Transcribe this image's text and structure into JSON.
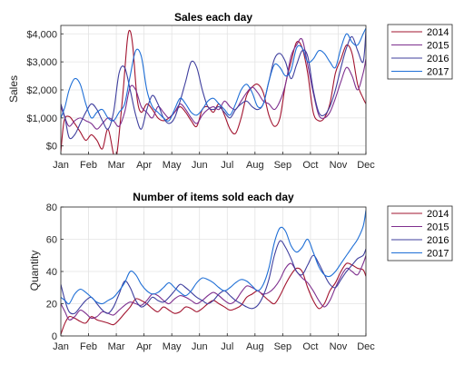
{
  "chart_data": [
    {
      "type": "line",
      "title": "Sales each day",
      "xlabel": "",
      "ylabel": "Sales",
      "x_ticks": [
        "Jan",
        "Feb",
        "Mar",
        "Apr",
        "May",
        "Jun",
        "Jul",
        "Aug",
        "Sep",
        "Oct",
        "Nov",
        "Dec"
      ],
      "y_ticks": [
        0,
        1000,
        2000,
        3000,
        4000
      ],
      "y_tick_labels": [
        "$0",
        "$1,000",
        "$2,000",
        "$3,000",
        "$4,000"
      ],
      "ylim": [
        -300,
        4300
      ],
      "xlim": [
        1,
        12
      ],
      "grid": true,
      "legend_position": "outside-top-right",
      "series": [
        {
          "name": "2014",
          "color": "#a2142f",
          "x": [
            1,
            1.12,
            1.3,
            1.5,
            1.7,
            1.9,
            2.1,
            2.3,
            2.5,
            2.7,
            2.9,
            3.0,
            3.1,
            3.25,
            3.4,
            3.5,
            3.6,
            3.75,
            3.9,
            4.1,
            4.3,
            4.5,
            4.7,
            4.9,
            5.1,
            5.3,
            5.5,
            5.7,
            5.9,
            6.1,
            6.3,
            6.5,
            6.7,
            6.9,
            7.1,
            7.3,
            7.5,
            7.7,
            7.9,
            8.1,
            8.3,
            8.5,
            8.7,
            8.9,
            9.1,
            9.3,
            9.5,
            9.7,
            9.9,
            10.1,
            10.3,
            10.5,
            10.7,
            10.9,
            11.1,
            11.3,
            11.5,
            11.7,
            11.9,
            12.0
          ],
          "y": [
            -200,
            900,
            1050,
            800,
            500,
            200,
            400,
            200,
            -100,
            600,
            -300,
            -400,
            400,
            2000,
            3800,
            4100,
            3500,
            1700,
            1200,
            1500,
            1300,
            1000,
            900,
            1000,
            1200,
            1400,
            1200,
            900,
            700,
            1300,
            1400,
            1200,
            1500,
            1100,
            600,
            450,
            1000,
            1800,
            2100,
            2200,
            1900,
            1100,
            700,
            1000,
            2200,
            3000,
            3700,
            3500,
            2600,
            1200,
            900,
            1000,
            1500,
            2600,
            3100,
            3600,
            3300,
            2200,
            1700,
            1500
          ]
        },
        {
          "name": "2015",
          "color": "#7e2f8e",
          "x": [
            1,
            1.15,
            1.3,
            1.5,
            1.7,
            1.9,
            2.1,
            2.3,
            2.5,
            2.7,
            2.9,
            3.1,
            3.3,
            3.5,
            3.7,
            3.9,
            4.1,
            4.3,
            4.5,
            4.7,
            4.9,
            5.1,
            5.3,
            5.5,
            5.7,
            5.9,
            6.1,
            6.3,
            6.5,
            6.7,
            6.9,
            7.1,
            7.3,
            7.5,
            7.7,
            7.9,
            8.1,
            8.3,
            8.5,
            8.7,
            8.9,
            9.1,
            9.3,
            9.5,
            9.7,
            9.9,
            10.1,
            10.3,
            10.5,
            10.7,
            10.9,
            11.1,
            11.3,
            11.5,
            11.7,
            11.9,
            12.0
          ],
          "y": [
            1400,
            1000,
            700,
            900,
            1000,
            900,
            800,
            600,
            800,
            1000,
            900,
            700,
            1200,
            2100,
            2000,
            1400,
            1200,
            1000,
            1400,
            1200,
            1000,
            1200,
            1500,
            1300,
            1000,
            800,
            1100,
            1300,
            1400,
            1300,
            1600,
            1400,
            1300,
            1600,
            1900,
            2100,
            1900,
            1600,
            1500,
            1300,
            1600,
            2200,
            3200,
            3600,
            3800,
            2900,
            1900,
            1100,
            1000,
            1200,
            1700,
            2300,
            2800,
            2500,
            2000,
            2600,
            3100
          ]
        },
        {
          "name": "2016",
          "color": "#3f3f9e",
          "x": [
            1,
            1.15,
            1.3,
            1.5,
            1.7,
            1.9,
            2.1,
            2.3,
            2.5,
            2.7,
            2.9,
            3.1,
            3.3,
            3.5,
            3.7,
            3.9,
            4.1,
            4.3,
            4.5,
            4.7,
            4.9,
            5.1,
            5.3,
            5.5,
            5.7,
            5.9,
            6.1,
            6.3,
            6.5,
            6.7,
            6.9,
            7.1,
            7.3,
            7.5,
            7.7,
            7.9,
            8.1,
            8.3,
            8.5,
            8.7,
            8.9,
            9.1,
            9.3,
            9.5,
            9.7,
            9.9,
            10.1,
            10.3,
            10.5,
            10.7,
            10.9,
            11.1,
            11.3,
            11.5,
            11.7,
            11.9,
            12.0
          ],
          "y": [
            1500,
            1000,
            300,
            400,
            800,
            1200,
            1500,
            1300,
            900,
            600,
            1200,
            2600,
            2800,
            2000,
            1100,
            600,
            1300,
            1800,
            1500,
            1000,
            800,
            1000,
            1600,
            2300,
            3000,
            2800,
            2000,
            1400,
            1300,
            1400,
            1200,
            1000,
            1300,
            1500,
            1600,
            1400,
            1300,
            1500,
            2300,
            3100,
            3300,
            3000,
            2400,
            2900,
            3400,
            3200,
            2000,
            1200,
            1100,
            1400,
            2000,
            2800,
            3500,
            3900,
            3400,
            3000,
            4100
          ]
        },
        {
          "name": "2017",
          "color": "#1f6fd6",
          "x": [
            1,
            1.15,
            1.3,
            1.5,
            1.7,
            1.9,
            2.1,
            2.3,
            2.5,
            2.7,
            2.9,
            3.1,
            3.3,
            3.5,
            3.7,
            3.9,
            4.1,
            4.3,
            4.5,
            4.7,
            4.9,
            5.1,
            5.3,
            5.5,
            5.7,
            5.9,
            6.1,
            6.3,
            6.5,
            6.7,
            6.9,
            7.1,
            7.3,
            7.5,
            7.7,
            7.9,
            8.1,
            8.3,
            8.5,
            8.7,
            8.9,
            9.1,
            9.3,
            9.5,
            9.7,
            9.9,
            10.1,
            10.3,
            10.5,
            10.7,
            10.9,
            11.1,
            11.3,
            11.5,
            11.7,
            11.9,
            12.0
          ],
          "y": [
            1000,
            1400,
            2000,
            2400,
            2200,
            1500,
            1000,
            1200,
            1300,
            1000,
            900,
            1200,
            1500,
            2500,
            3400,
            3200,
            2000,
            1400,
            1200,
            1000,
            900,
            1300,
            1700,
            1500,
            1200,
            1100,
            1300,
            1600,
            1700,
            1500,
            1300,
            1100,
            1500,
            2000,
            2200,
            1900,
            1400,
            1500,
            2300,
            2900,
            2800,
            2500,
            2700,
            3500,
            3500,
            3000,
            3100,
            3400,
            3300,
            3000,
            2800,
            3500,
            4000,
            3700,
            3600,
            4000,
            4200
          ]
        }
      ]
    },
    {
      "type": "line",
      "title": "Number of items sold each day",
      "xlabel": "",
      "ylabel": "Quantity",
      "x_ticks": [
        "Jan",
        "Feb",
        "Mar",
        "Apr",
        "May",
        "Jun",
        "Jul",
        "Aug",
        "Sep",
        "Oct",
        "Nov",
        "Dec"
      ],
      "y_ticks": [
        0,
        20,
        40,
        60,
        80
      ],
      "y_tick_labels": [
        "0",
        "20",
        "40",
        "60",
        "80"
      ],
      "ylim": [
        0,
        80
      ],
      "xlim": [
        1,
        12
      ],
      "grid": true,
      "legend_position": "outside-top-right",
      "series": [
        {
          "name": "2014",
          "color": "#a2142f",
          "x": [
            1,
            1.15,
            1.3,
            1.5,
            1.7,
            1.9,
            2.1,
            2.3,
            2.5,
            2.7,
            2.9,
            3.1,
            3.3,
            3.5,
            3.7,
            3.9,
            4.1,
            4.3,
            4.5,
            4.7,
            4.9,
            5.1,
            5.3,
            5.5,
            5.7,
            5.9,
            6.1,
            6.3,
            6.5,
            6.7,
            6.9,
            7.1,
            7.3,
            7.5,
            7.7,
            7.9,
            8.1,
            8.3,
            8.5,
            8.7,
            8.9,
            9.1,
            9.3,
            9.5,
            9.7,
            9.9,
            10.1,
            10.3,
            10.5,
            10.7,
            10.9,
            11.1,
            11.3,
            11.5,
            11.7,
            11.9,
            12.0
          ],
          "y": [
            1,
            8,
            12,
            11,
            9,
            8,
            12,
            10,
            9,
            8,
            7,
            10,
            14,
            18,
            23,
            22,
            20,
            17,
            15,
            18,
            16,
            14,
            15,
            18,
            17,
            15,
            17,
            20,
            22,
            20,
            18,
            16,
            17,
            19,
            24,
            26,
            28,
            25,
            22,
            20,
            25,
            32,
            38,
            42,
            40,
            30,
            22,
            17,
            20,
            28,
            33,
            40,
            45,
            44,
            42,
            41,
            37
          ]
        },
        {
          "name": "2015",
          "color": "#7e2f8e",
          "x": [
            1,
            1.15,
            1.3,
            1.5,
            1.7,
            1.9,
            2.1,
            2.3,
            2.5,
            2.7,
            2.9,
            3.1,
            3.3,
            3.5,
            3.7,
            3.9,
            4.1,
            4.3,
            4.5,
            4.7,
            4.9,
            5.1,
            5.3,
            5.5,
            5.7,
            5.9,
            6.1,
            6.3,
            6.5,
            6.7,
            6.9,
            7.1,
            7.3,
            7.5,
            7.7,
            7.9,
            8.1,
            8.3,
            8.5,
            8.7,
            8.9,
            9.1,
            9.3,
            9.5,
            9.7,
            9.9,
            10.1,
            10.3,
            10.5,
            10.7,
            10.9,
            11.1,
            11.3,
            11.5,
            11.7,
            11.9,
            12.0
          ],
          "y": [
            20,
            15,
            10,
            12,
            16,
            14,
            11,
            12,
            15,
            14,
            13,
            16,
            19,
            21,
            20,
            19,
            22,
            26,
            25,
            22,
            20,
            23,
            25,
            24,
            22,
            20,
            22,
            25,
            27,
            25,
            22,
            20,
            22,
            27,
            31,
            30,
            28,
            26,
            27,
            30,
            35,
            42,
            45,
            40,
            36,
            33,
            28,
            22,
            18,
            22,
            30,
            37,
            42,
            40,
            38,
            45,
            50
          ]
        },
        {
          "name": "2016",
          "color": "#3f3f9e",
          "x": [
            1,
            1.15,
            1.3,
            1.5,
            1.7,
            1.9,
            2.1,
            2.3,
            2.5,
            2.7,
            2.9,
            3.1,
            3.3,
            3.5,
            3.7,
            3.9,
            4.1,
            4.3,
            4.5,
            4.7,
            4.9,
            5.1,
            5.3,
            5.5,
            5.7,
            5.9,
            6.1,
            6.3,
            6.5,
            6.7,
            6.9,
            7.1,
            7.3,
            7.5,
            7.7,
            7.9,
            8.1,
            8.3,
            8.5,
            8.7,
            8.9,
            9.1,
            9.3,
            9.5,
            9.7,
            9.9,
            10.1,
            10.3,
            10.5,
            10.7,
            10.9,
            11.1,
            11.3,
            11.5,
            11.7,
            11.9,
            12.0
          ],
          "y": [
            32,
            22,
            15,
            14,
            18,
            22,
            24,
            20,
            16,
            14,
            18,
            26,
            34,
            30,
            22,
            18,
            20,
            24,
            22,
            21,
            24,
            28,
            32,
            30,
            27,
            24,
            22,
            20,
            22,
            26,
            28,
            25,
            22,
            20,
            18,
            17,
            19,
            25,
            35,
            50,
            59,
            55,
            48,
            40,
            38,
            44,
            50,
            45,
            38,
            32,
            30,
            35,
            40,
            44,
            48,
            50,
            54
          ]
        },
        {
          "name": "2017",
          "color": "#1f6fd6",
          "x": [
            1,
            1.15,
            1.3,
            1.5,
            1.7,
            1.9,
            2.1,
            2.3,
            2.5,
            2.7,
            2.9,
            3.1,
            3.3,
            3.5,
            3.7,
            3.9,
            4.1,
            4.3,
            4.5,
            4.7,
            4.9,
            5.1,
            5.3,
            5.5,
            5.7,
            5.9,
            6.1,
            6.3,
            6.5,
            6.7,
            6.9,
            7.1,
            7.3,
            7.5,
            7.7,
            7.9,
            8.1,
            8.3,
            8.5,
            8.7,
            8.9,
            9.1,
            9.3,
            9.5,
            9.7,
            9.9,
            10.1,
            10.3,
            10.5,
            10.7,
            10.9,
            11.1,
            11.3,
            11.5,
            11.7,
            11.9,
            12.0
          ],
          "y": [
            24,
            22,
            20,
            26,
            29,
            27,
            24,
            21,
            20,
            22,
            24,
            28,
            33,
            40,
            38,
            32,
            28,
            26,
            27,
            30,
            33,
            30,
            27,
            25,
            28,
            33,
            36,
            35,
            33,
            30,
            28,
            30,
            33,
            35,
            34,
            31,
            28,
            32,
            42,
            58,
            67,
            65,
            56,
            52,
            55,
            60,
            52,
            43,
            38,
            37,
            40,
            45,
            50,
            55,
            60,
            68,
            78
          ]
        }
      ]
    }
  ]
}
